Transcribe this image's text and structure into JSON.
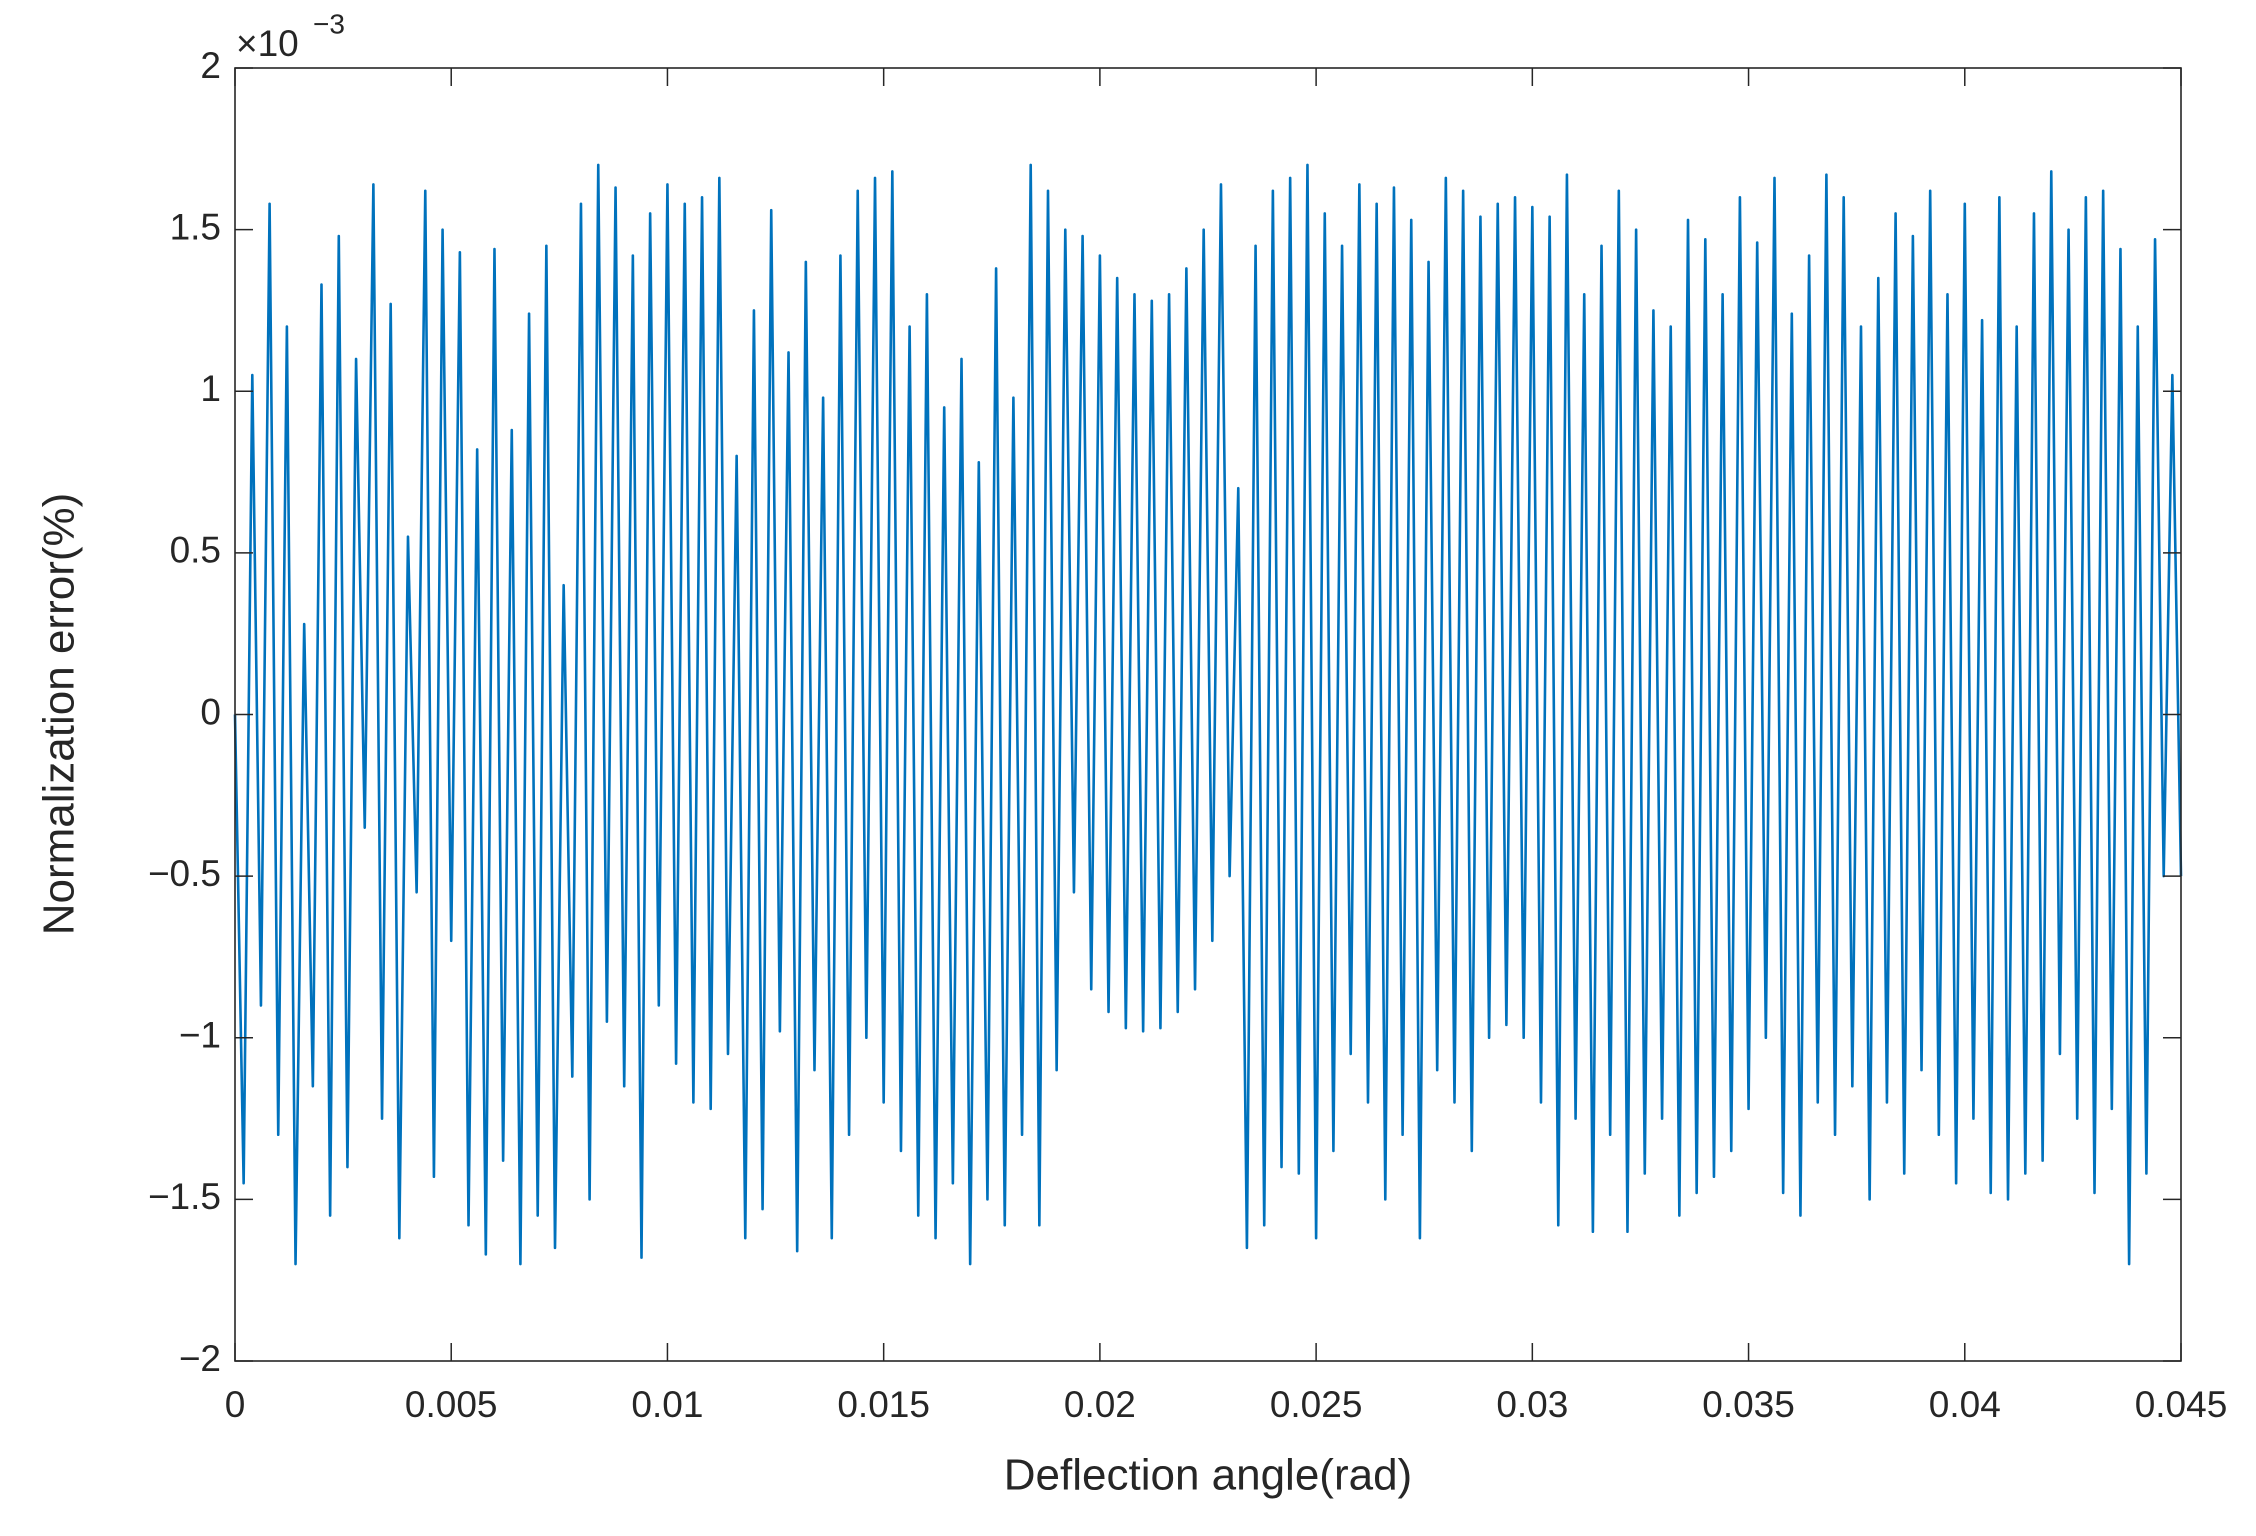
{
  "chart_data": {
    "type": "line",
    "xlabel": "Deflection angle(rad)",
    "ylabel": "Normalization error(%)",
    "y_scale_label": "×10",
    "y_scale_exponent": "−3",
    "color": "#0072BD",
    "xlim": [
      0,
      0.045
    ],
    "ylim": [
      -2,
      2
    ],
    "xticks": [
      0,
      0.005,
      0.01,
      0.015,
      0.02,
      0.025,
      0.03,
      0.035,
      0.04,
      0.045
    ],
    "yticks": [
      {
        "value": -2,
        "label": "−2"
      },
      {
        "value": -1.5,
        "label": "−1.5"
      },
      {
        "value": -1,
        "label": "−1"
      },
      {
        "value": -0.5,
        "label": "−0.5"
      },
      0,
      0.5,
      1,
      1.5,
      2
    ],
    "x": [
      0,
      0.0002,
      0.0004,
      0.0006,
      0.0008,
      0.001,
      0.0012,
      0.0014,
      0.0016,
      0.0018,
      0.002,
      0.0022,
      0.0024,
      0.0026,
      0.0028,
      0.003,
      0.0032,
      0.0034,
      0.0036,
      0.0038,
      0.004,
      0.0042,
      0.0044,
      0.0046,
      0.0048,
      0.005,
      0.0052,
      0.0054,
      0.0056,
      0.0058,
      0.006,
      0.0062,
      0.0064,
      0.0066,
      0.0068,
      0.007,
      0.0072,
      0.0074,
      0.0076,
      0.0078,
      0.008,
      0.0082,
      0.0084,
      0.0086,
      0.0088,
      0.009,
      0.0092,
      0.0094,
      0.0096,
      0.0098,
      0.01,
      0.0102,
      0.0104,
      0.0106,
      0.0108,
      0.011,
      0.0112,
      0.0114,
      0.0116,
      0.0118,
      0.012,
      0.0122,
      0.0124,
      0.0126,
      0.0128,
      0.013,
      0.0132,
      0.0134,
      0.0136,
      0.0138,
      0.014,
      0.0142,
      0.0144,
      0.0146,
      0.0148,
      0.015,
      0.0152,
      0.0154,
      0.0156,
      0.0158,
      0.016,
      0.0162,
      0.0164,
      0.0166,
      0.0168,
      0.017,
      0.0172,
      0.0174,
      0.0176,
      0.0178,
      0.018,
      0.0182,
      0.0184,
      0.0186,
      0.0188,
      0.019,
      0.0192,
      0.0194,
      0.0196,
      0.0198,
      0.02,
      0.0202,
      0.0204,
      0.0206,
      0.0208,
      0.021,
      0.0212,
      0.0214,
      0.0216,
      0.0218,
      0.022,
      0.0222,
      0.0224,
      0.0226,
      0.0228,
      0.023,
      0.0232,
      0.0234,
      0.0236,
      0.0238,
      0.024,
      0.0242,
      0.0244,
      0.0246,
      0.0248,
      0.025,
      0.0252,
      0.0254,
      0.0256,
      0.0258,
      0.026,
      0.0262,
      0.0264,
      0.0266,
      0.0268,
      0.027,
      0.0272,
      0.0274,
      0.0276,
      0.0278,
      0.028,
      0.0282,
      0.0284,
      0.0286,
      0.0288,
      0.029,
      0.0292,
      0.0294,
      0.0296,
      0.0298,
      0.03,
      0.0302,
      0.0304,
      0.0306,
      0.0308,
      0.031,
      0.0312,
      0.0314,
      0.0316,
      0.0318,
      0.032,
      0.0322,
      0.0324,
      0.0326,
      0.0328,
      0.033,
      0.0332,
      0.0334,
      0.0336,
      0.0338,
      0.034,
      0.0342,
      0.0344,
      0.0346,
      0.0348,
      0.035,
      0.0352,
      0.0354,
      0.0356,
      0.0358,
      0.036,
      0.0362,
      0.0364,
      0.0366,
      0.0368,
      0.037,
      0.0372,
      0.0374,
      0.0376,
      0.0378,
      0.038,
      0.0382,
      0.0384,
      0.0386,
      0.0388,
      0.039,
      0.0392,
      0.0394,
      0.0396,
      0.0398,
      0.04,
      0.0402,
      0.0404,
      0.0406,
      0.0408,
      0.041,
      0.0412,
      0.0414,
      0.0416,
      0.0418,
      0.042,
      0.0422,
      0.0424,
      0.0426,
      0.0428,
      0.043,
      0.0432,
      0.0434,
      0.0436,
      0.0438,
      0.044,
      0.0442,
      0.0444,
      0.0446,
      0.0448,
      0.045
    ],
    "values": [
      0,
      -1.45,
      1.05,
      -0.9,
      1.58,
      -1.3,
      1.2,
      -1.7,
      0.28,
      -1.15,
      1.33,
      -1.55,
      1.48,
      -1.4,
      1.1,
      -0.35,
      1.64,
      -1.25,
      1.27,
      -1.62,
      0.55,
      -0.55,
      1.62,
      -1.43,
      1.5,
      -0.7,
      1.43,
      -1.58,
      0.82,
      -1.67,
      1.44,
      -1.38,
      0.88,
      -1.7,
      1.24,
      -1.55,
      1.45,
      -1.65,
      0.4,
      -1.12,
      1.58,
      -1.5,
      1.7,
      -0.95,
      1.63,
      -1.15,
      1.42,
      -1.68,
      1.55,
      -0.9,
      1.64,
      -1.08,
      1.58,
      -1.2,
      1.6,
      -1.22,
      1.66,
      -1.05,
      0.8,
      -1.62,
      1.25,
      -1.53,
      1.56,
      -0.98,
      1.12,
      -1.66,
      1.4,
      -1.1,
      0.98,
      -1.62,
      1.42,
      -1.3,
      1.62,
      -1.0,
      1.66,
      -1.2,
      1.68,
      -1.35,
      1.2,
      -1.55,
      1.3,
      -1.62,
      0.95,
      -1.45,
      1.1,
      -1.7,
      0.78,
      -1.5,
      1.38,
      -1.58,
      0.98,
      -1.3,
      1.7,
      -1.58,
      1.62,
      -1.1,
      1.5,
      -0.55,
      1.48,
      -0.85,
      1.42,
      -0.92,
      1.35,
      -0.97,
      1.3,
      -0.98,
      1.28,
      -0.97,
      1.3,
      -0.92,
      1.38,
      -0.85,
      1.5,
      -0.7,
      1.64,
      -0.5,
      0.7,
      -1.65,
      1.45,
      -1.58,
      1.62,
      -1.4,
      1.66,
      -1.42,
      1.7,
      -1.62,
      1.55,
      -1.35,
      1.45,
      -1.05,
      1.64,
      -1.2,
      1.58,
      -1.5,
      1.63,
      -1.3,
      1.53,
      -1.62,
      1.4,
      -1.1,
      1.66,
      -1.2,
      1.62,
      -1.35,
      1.54,
      -1.0,
      1.58,
      -0.96,
      1.6,
      -1.0,
      1.57,
      -1.2,
      1.54,
      -1.58,
      1.67,
      -1.25,
      1.3,
      -1.6,
      1.45,
      -1.3,
      1.62,
      -1.6,
      1.5,
      -1.42,
      1.25,
      -1.25,
      1.2,
      -1.55,
      1.53,
      -1.48,
      1.47,
      -1.43,
      1.3,
      -1.35,
      1.6,
      -1.22,
      1.46,
      -1.0,
      1.66,
      -1.48,
      1.24,
      -1.55,
      1.42,
      -1.2,
      1.67,
      -1.3,
      1.6,
      -1.15,
      1.2,
      -1.5,
      1.35,
      -1.2,
      1.55,
      -1.42,
      1.48,
      -1.1,
      1.62,
      -1.3,
      1.3,
      -1.45,
      1.58,
      -1.25,
      1.22,
      -1.48,
      1.6,
      -1.5,
      1.2,
      -1.42,
      1.55,
      -1.38,
      1.68,
      -1.05,
      1.5,
      -1.25,
      1.6,
      -1.48,
      1.62,
      -1.22,
      1.44,
      -1.7,
      1.2,
      -1.42,
      1.47,
      -0.5,
      1.05,
      -0.5
    ]
  }
}
